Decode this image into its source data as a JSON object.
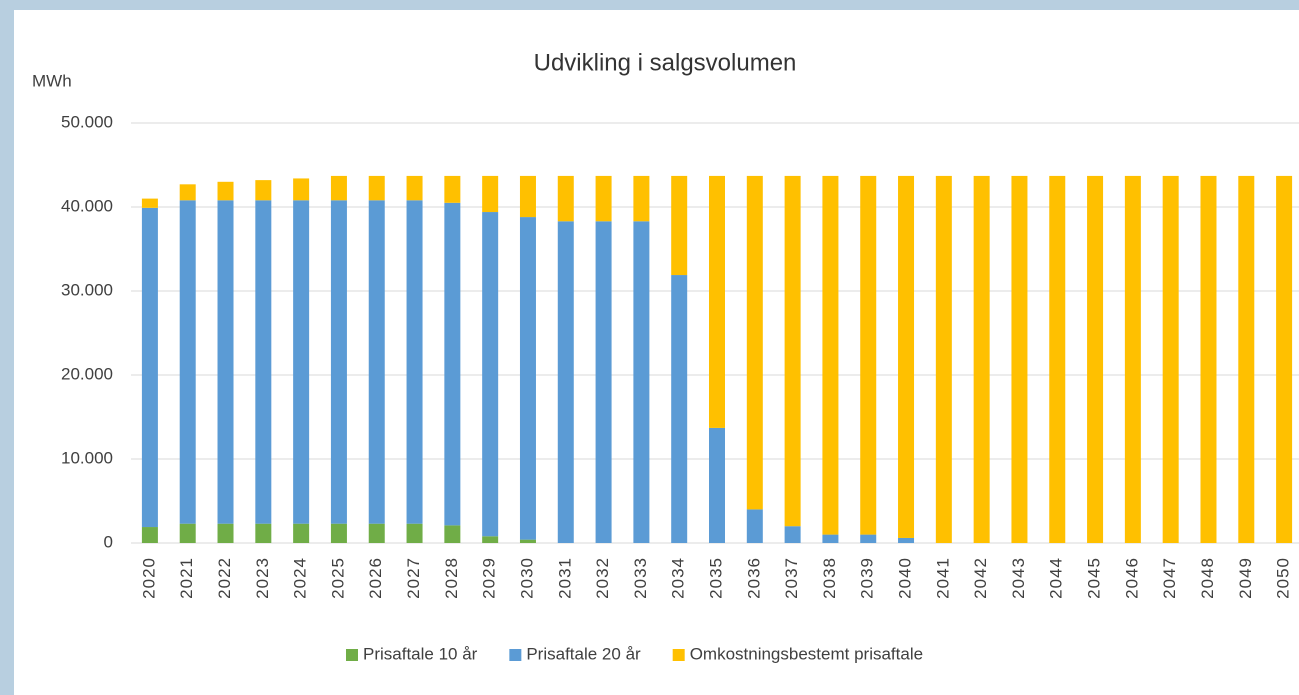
{
  "chart_data": {
    "type": "bar",
    "stacked": true,
    "title": "Udvikling i salgsvolumen",
    "y_label": "MWh",
    "categories": [
      "2020",
      "2021",
      "2022",
      "2023",
      "2024",
      "2025",
      "2026",
      "2027",
      "2028",
      "2029",
      "2030",
      "2031",
      "2032",
      "2033",
      "2034",
      "2035",
      "2036",
      "2037",
      "2038",
      "2039",
      "2040",
      "2041",
      "2042",
      "2043",
      "2044",
      "2045",
      "2046",
      "2047",
      "2048",
      "2049",
      "2050"
    ],
    "series": [
      {
        "name": "Prisaftale 10 år",
        "color": "#70ad47",
        "values": [
          1900,
          2300,
          2300,
          2300,
          2300,
          2300,
          2300,
          2300,
          2100,
          800,
          400,
          0,
          0,
          0,
          0,
          0,
          0,
          0,
          0,
          0,
          0,
          0,
          0,
          0,
          0,
          0,
          0,
          0,
          0,
          0,
          0
        ]
      },
      {
        "name": "Prisaftale 20 år",
        "color": "#5b9bd5",
        "values": [
          38000,
          38500,
          38500,
          38500,
          38500,
          38500,
          38500,
          38500,
          38400,
          38600,
          38400,
          38300,
          38300,
          38300,
          31900,
          13700,
          4000,
          2000,
          1000,
          1000,
          600,
          0,
          0,
          0,
          0,
          0,
          0,
          0,
          0,
          0,
          0
        ]
      },
      {
        "name": "Omkostningsbestemt prisaftale",
        "color": "#ffc000",
        "values": [
          1100,
          1900,
          2200,
          2400,
          2600,
          2900,
          2900,
          2900,
          3200,
          4300,
          4900,
          5400,
          5400,
          5400,
          11800,
          30000,
          39700,
          41700,
          42700,
          42700,
          43100,
          43700,
          43700,
          43700,
          43700,
          43700,
          43700,
          43700,
          43700,
          43700,
          43700
        ]
      }
    ],
    "ylim": [
      0,
      50000
    ],
    "yticks": [
      0,
      {
        "value": 10000,
        "label": "10.000"
      },
      {
        "value": 20000,
        "label": "20.000"
      },
      {
        "value": 30000,
        "label": "30.000"
      },
      {
        "value": 40000,
        "label": "40.000"
      },
      {
        "value": 50000,
        "label": "50.000"
      }
    ],
    "grid": true,
    "legend": "bottom"
  }
}
